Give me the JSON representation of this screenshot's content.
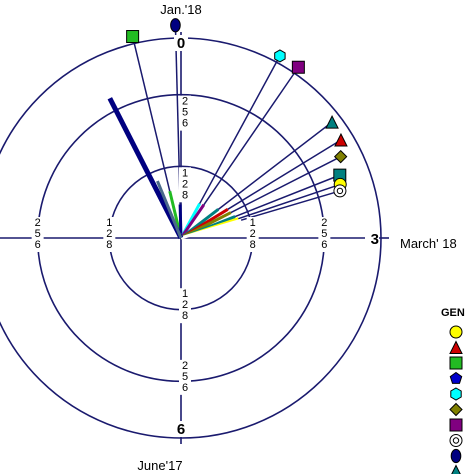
{
  "chart_data": {
    "type": "polar-vector",
    "clock_labels": [
      "0",
      "3",
      "6"
    ],
    "month_labels": {
      "top": "Jan.'18",
      "right": "March' 18",
      "bottom": "June'17"
    },
    "rings": [
      128,
      256
    ],
    "ring_tick_labels": [
      {
        "ring": 128,
        "text": "128"
      },
      {
        "ring": 256,
        "text": "256"
      }
    ],
    "legend_title": "GEN",
    "legend_markers": [
      {
        "shape": "circle",
        "color": "#ffff00"
      },
      {
        "shape": "triangle",
        "color": "#cc0000"
      },
      {
        "shape": "square",
        "color": "#22bb22"
      },
      {
        "shape": "pentagon",
        "color": "#0000cc"
      },
      {
        "shape": "hexagon",
        "color": "#00ffff"
      },
      {
        "shape": "diamond",
        "color": "#808000"
      },
      {
        "shape": "square",
        "color": "#800080"
      },
      {
        "shape": "bullseye",
        "color": "#ffffff"
      },
      {
        "shape": "ellipse",
        "color": "#000080"
      },
      {
        "shape": "triangle",
        "color": "#008080"
      },
      {
        "shape": "square",
        "color": "#008080"
      }
    ],
    "series": [
      {
        "angle": -0.45,
        "length": 86,
        "marker": "square",
        "color": "#22bb22",
        "marker_dist": 370
      },
      {
        "angle": -0.05,
        "length": 60,
        "marker": "ellipse",
        "color": "#000080",
        "marker_dist": 380
      },
      {
        "angle": 0.95,
        "length": 70,
        "marker": "hexagon",
        "color": "#00ffff",
        "marker_dist": 370
      },
      {
        "angle": 1.15,
        "length": 72,
        "marker": "square",
        "color": "#800080",
        "marker_dist": 370
      },
      {
        "angle": 1.75,
        "length": 84,
        "marker": "triangle",
        "color": "#008080",
        "marker_dist": 340
      },
      {
        "angle": 1.95,
        "length": 98,
        "marker": "triangle",
        "color": "#cc0000",
        "marker_dist": 335
      },
      {
        "angle": 2.1,
        "length": 100,
        "marker": "diamond",
        "color": "#808000",
        "marker_dist": 320
      },
      {
        "angle": 2.28,
        "length": 104,
        "marker": "square",
        "color": "#008080",
        "marker_dist": 305
      },
      {
        "angle": 2.38,
        "length": 108,
        "marker": "circle",
        "color": "#ffff00",
        "marker_dist": 300
      },
      {
        "angle": 2.45,
        "length": 112,
        "marker": "bullseye",
        "color": "#ffffff",
        "marker_dist": 296
      },
      {
        "angle": -0.9,
        "length": 280,
        "marker": "none",
        "color": "#000080",
        "marker_dist": 0
      },
      {
        "angle": -0.75,
        "length": 110,
        "marker": "none",
        "color": "#4a6a8a",
        "marker_dist": 0
      }
    ]
  }
}
